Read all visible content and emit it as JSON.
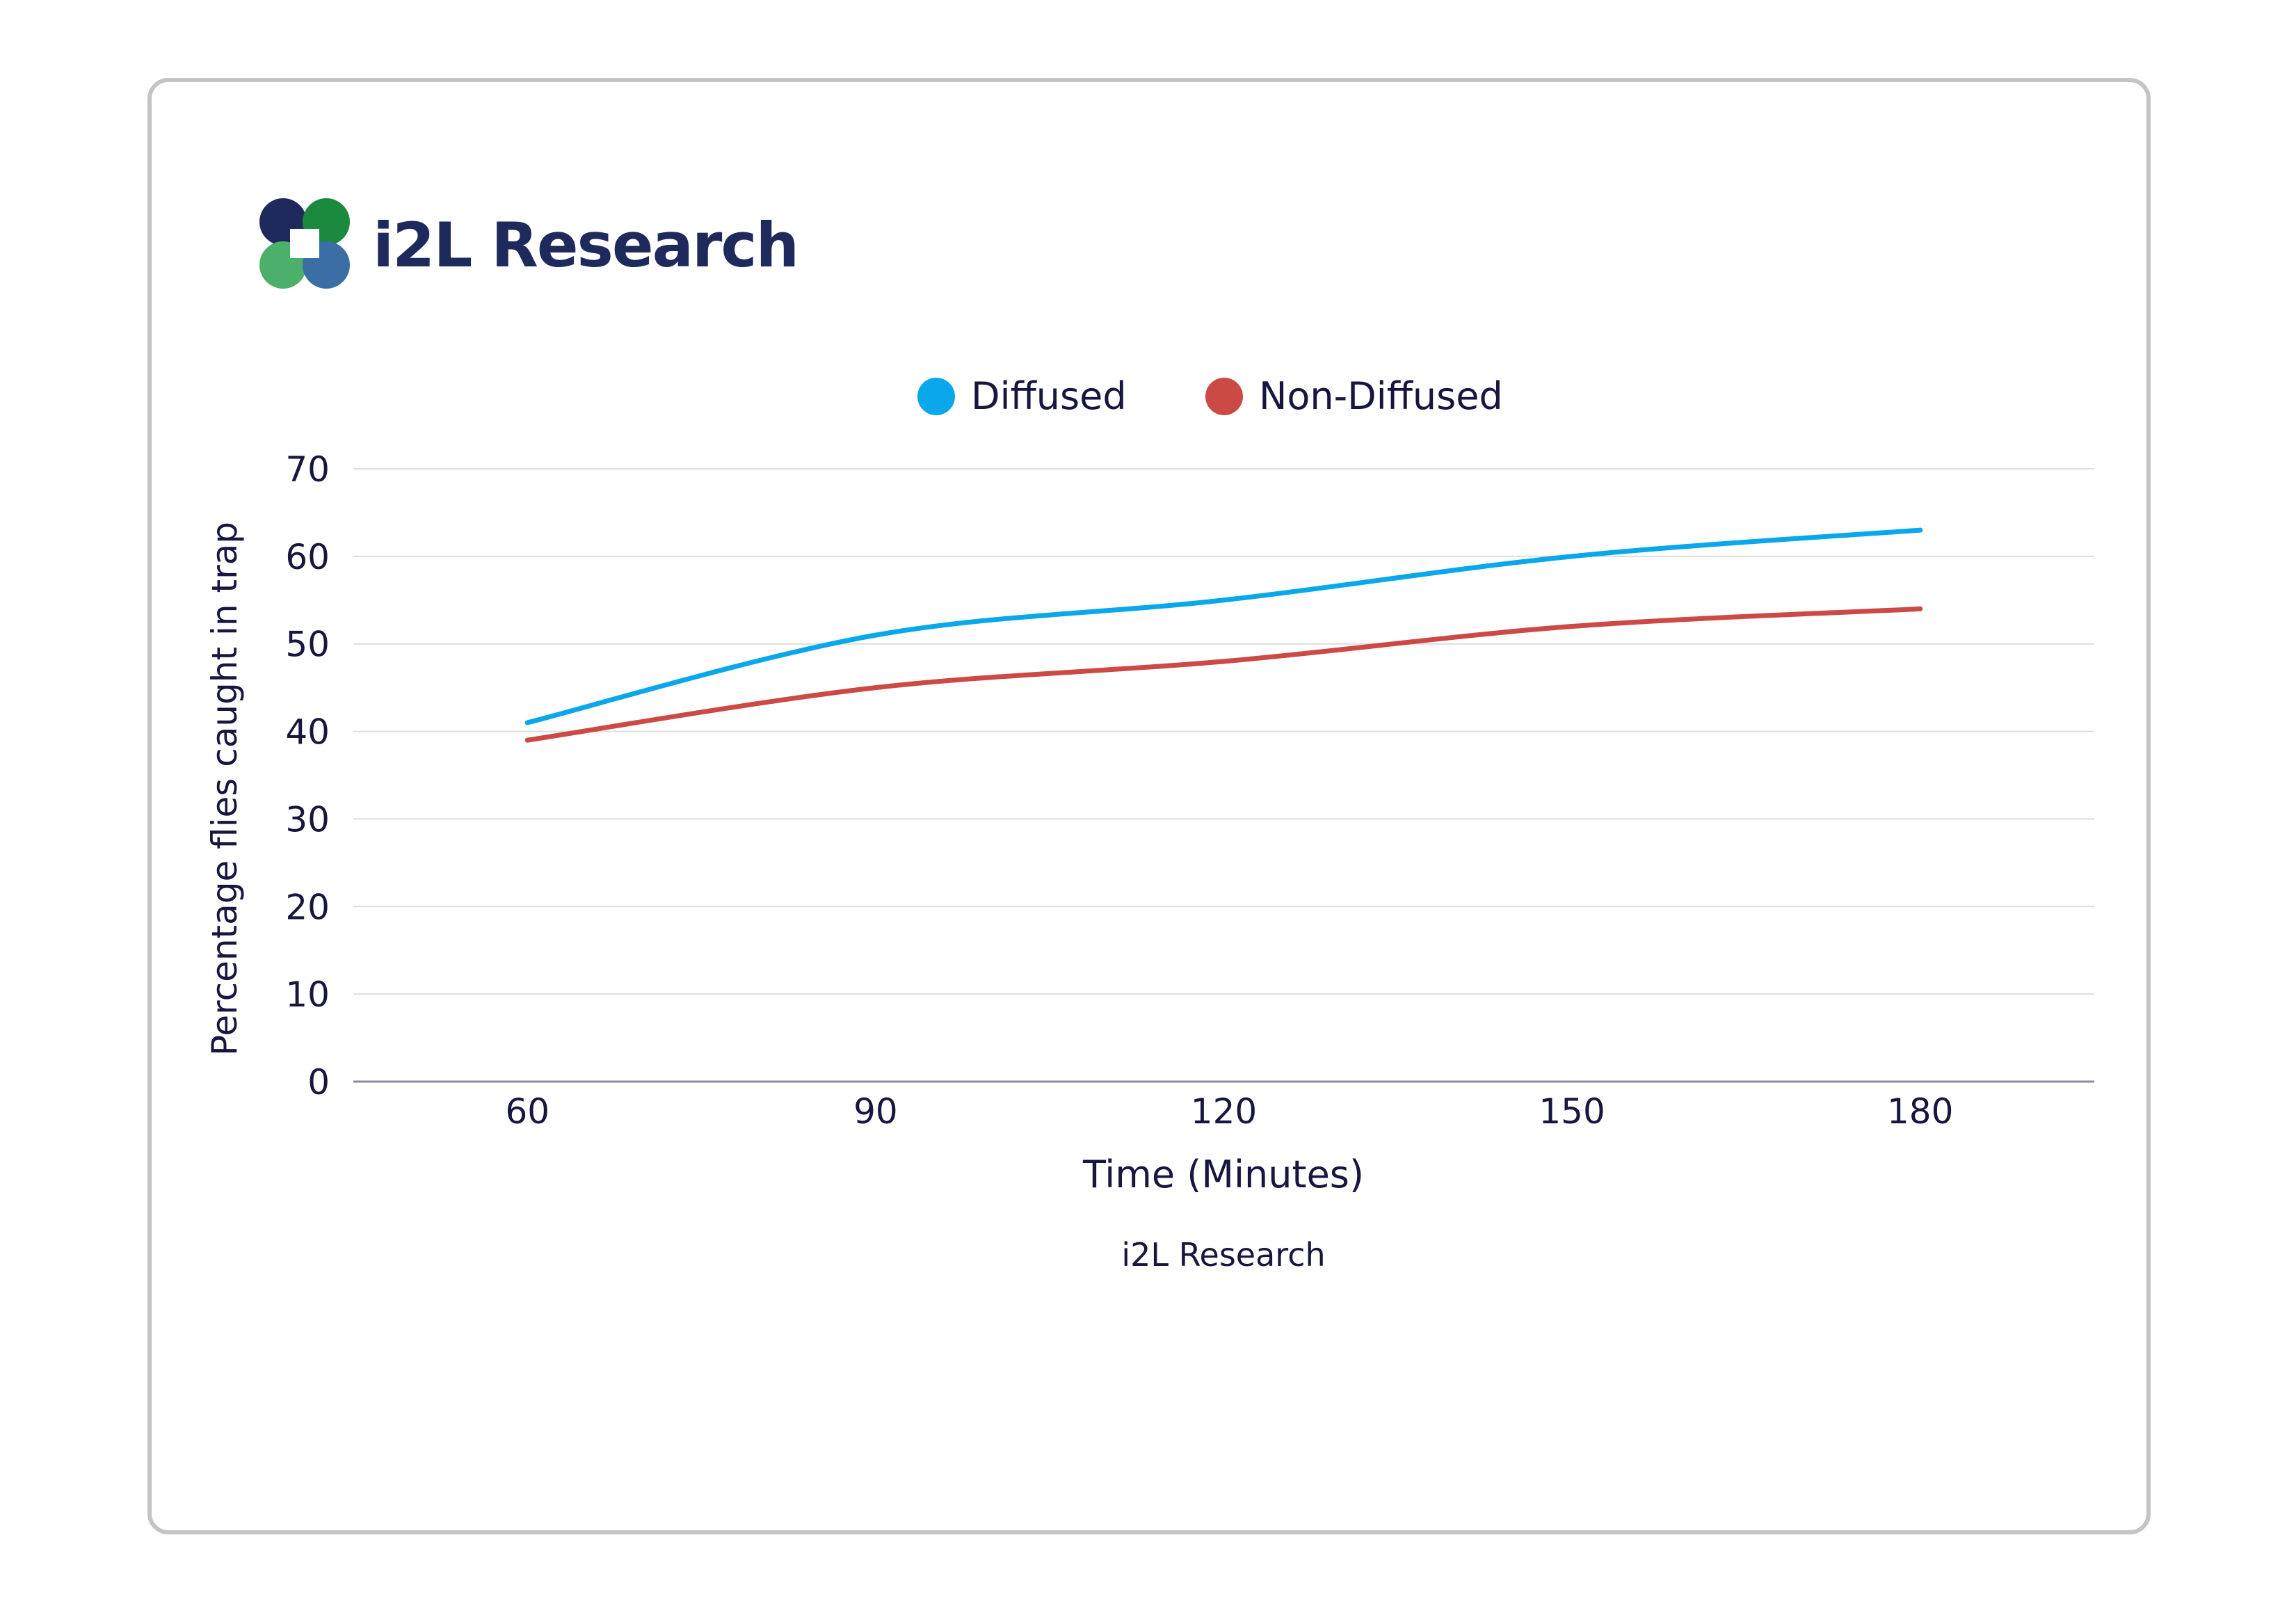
{
  "logo": {
    "brand_name": "i2L Research",
    "colors": {
      "navy": "#1f2a5c",
      "green": "#1b8a3e",
      "light_green": "#4caf6a",
      "blue": "#3b6ea5"
    }
  },
  "legend": {
    "items": [
      {
        "label": "Diffused",
        "color": "#0aa8ea"
      },
      {
        "label": "Non-Diffused",
        "color": "#cc4a45"
      }
    ]
  },
  "chart_data": {
    "type": "line",
    "x": [
      60,
      90,
      120,
      150,
      180
    ],
    "x_tick_labels": [
      "60",
      "90",
      "120",
      "150",
      "180"
    ],
    "y_tick_labels": [
      "0",
      "10",
      "20",
      "30",
      "40",
      "50",
      "60",
      "70"
    ],
    "series": [
      {
        "name": "Diffused",
        "color": "#0aa8ea",
        "values": [
          41,
          51,
          55,
          60,
          63
        ]
      },
      {
        "name": "Non-Diffused",
        "color": "#cc4a45",
        "values": [
          39,
          45,
          48,
          52,
          54
        ]
      }
    ],
    "xlabel": "Time (Minutes)",
    "ylabel": "Percentage flies caught in trap",
    "source": "i2L Research",
    "ylim": [
      0,
      70
    ],
    "xlim": [
      45,
      195
    ],
    "grid": true,
    "legend_position": "top-center",
    "colors": {
      "grid": "#dedede",
      "axis": "#8a8aa8",
      "text": "#16163f"
    }
  }
}
